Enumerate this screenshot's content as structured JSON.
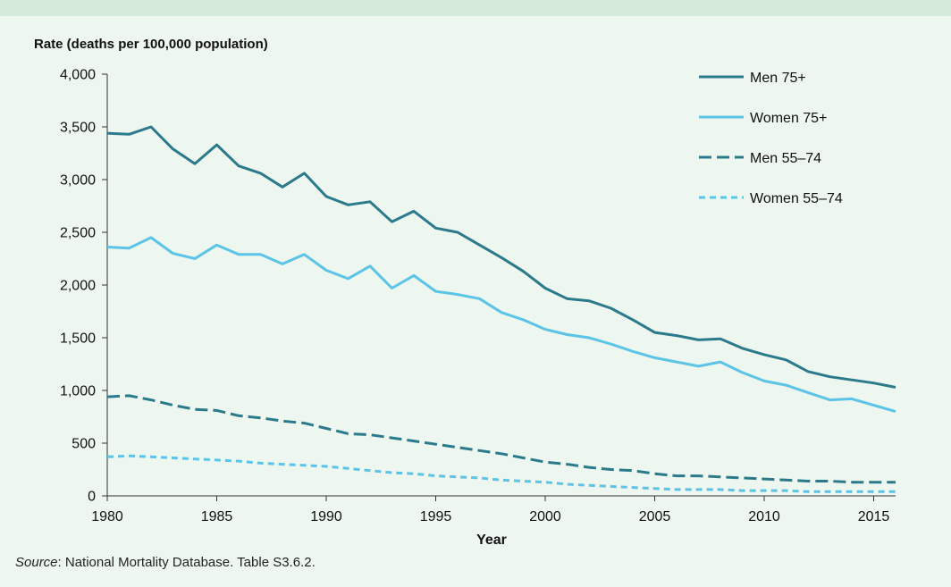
{
  "chart_data": {
    "type": "line",
    "ylabel": "Rate (deaths per 100,000 population)",
    "xlabel": "Year",
    "ylim": [
      0,
      4000
    ],
    "xlim": [
      1980,
      2016
    ],
    "y_ticks": [
      0,
      500,
      1000,
      1500,
      2000,
      2500,
      3000,
      3500,
      4000
    ],
    "y_tick_labels": [
      "0",
      "500",
      "1,000",
      "1,500",
      "2,000",
      "2,500",
      "3,000",
      "3,500",
      "4,000"
    ],
    "x_ticks": [
      1980,
      1985,
      1990,
      1995,
      2000,
      2005,
      2010,
      2015
    ],
    "x_tick_labels": [
      "1980",
      "1985",
      "1990",
      "1995",
      "2000",
      "2005",
      "2010",
      "2015"
    ],
    "grid": false,
    "legend_position": "top-right",
    "x": [
      1980,
      1981,
      1982,
      1983,
      1984,
      1985,
      1986,
      1987,
      1988,
      1989,
      1990,
      1991,
      1992,
      1993,
      1994,
      1995,
      1996,
      1997,
      1998,
      1999,
      2000,
      2001,
      2002,
      2003,
      2004,
      2005,
      2006,
      2007,
      2008,
      2009,
      2010,
      2011,
      2012,
      2013,
      2014,
      2015,
      2016
    ],
    "series": [
      {
        "name": "Men 75+",
        "color": "#2b7a8c",
        "dash": "solid",
        "values": [
          3440,
          3430,
          3500,
          3290,
          3150,
          3330,
          3130,
          3060,
          2930,
          3060,
          2840,
          2760,
          2790,
          2600,
          2700,
          2540,
          2500,
          2380,
          2260,
          2130,
          1970,
          1870,
          1850,
          1780,
          1670,
          1550,
          1520,
          1480,
          1490,
          1400,
          1340,
          1290,
          1180,
          1130,
          1100,
          1070,
          1030
        ]
      },
      {
        "name": "Women 75+",
        "color": "#5cc4e6",
        "dash": "solid",
        "values": [
          2360,
          2350,
          2450,
          2300,
          2250,
          2380,
          2290,
          2290,
          2200,
          2290,
          2140,
          2060,
          2180,
          1970,
          2090,
          1940,
          1910,
          1870,
          1740,
          1670,
          1580,
          1530,
          1500,
          1440,
          1370,
          1310,
          1270,
          1230,
          1270,
          1170,
          1090,
          1050,
          980,
          910,
          920,
          860,
          800
        ]
      },
      {
        "name": "Men 55–74",
        "color": "#2b7a8c",
        "dash": "long-dash",
        "values": [
          940,
          950,
          910,
          860,
          820,
          810,
          760,
          740,
          710,
          690,
          640,
          590,
          580,
          550,
          520,
          490,
          460,
          430,
          400,
          360,
          320,
          300,
          270,
          250,
          240,
          210,
          190,
          190,
          180,
          170,
          160,
          150,
          140,
          140,
          130,
          130,
          130
        ]
      },
      {
        "name": "Women 55–74",
        "color": "#5cc4e6",
        "dash": "short-dash",
        "values": [
          370,
          380,
          370,
          360,
          350,
          340,
          330,
          310,
          300,
          290,
          280,
          260,
          240,
          220,
          210,
          190,
          180,
          170,
          150,
          140,
          130,
          110,
          100,
          90,
          80,
          70,
          60,
          60,
          60,
          50,
          50,
          50,
          40,
          40,
          40,
          40,
          40
        ]
      }
    ]
  },
  "footer": {
    "source_label": "Source",
    "source_text": ": National Mortality Database. Table S3.6.2."
  }
}
